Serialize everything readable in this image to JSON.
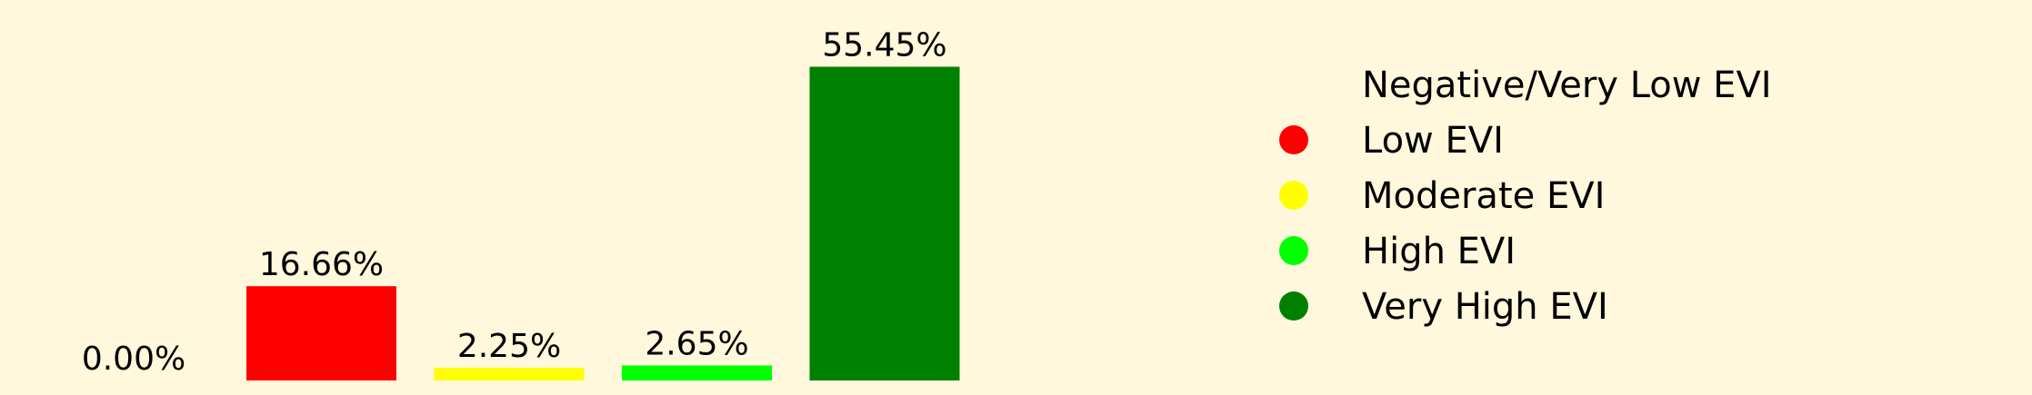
{
  "chart_data": {
    "type": "bar",
    "categories": [
      "Negative/Very Low EVI",
      "Low EVI",
      "Moderate EVI",
      "High EVI",
      "Very High EVI"
    ],
    "values": [
      0.0,
      16.66,
      2.25,
      2.65,
      55.45
    ],
    "value_labels": [
      "0.00%",
      "16.66%",
      "2.25%",
      "2.65%",
      "55.45%"
    ],
    "colors": [
      "#fff8dc",
      "#ff0000",
      "#ffff00",
      "#00ff00",
      "#008000"
    ],
    "background": "#fff8dc",
    "ylim": [
      0,
      65
    ],
    "grid": false,
    "axes_visible": false,
    "legend_position": "right",
    "legend": [
      {
        "label": "Negative/Very Low EVI",
        "color": "#fff8dc"
      },
      {
        "label": "Low EVI",
        "color": "#ff0000"
      },
      {
        "label": "Moderate EVI",
        "color": "#ffff00"
      },
      {
        "label": "High EVI",
        "color": "#00ff00"
      },
      {
        "label": "Very High EVI",
        "color": "#008000"
      }
    ]
  }
}
